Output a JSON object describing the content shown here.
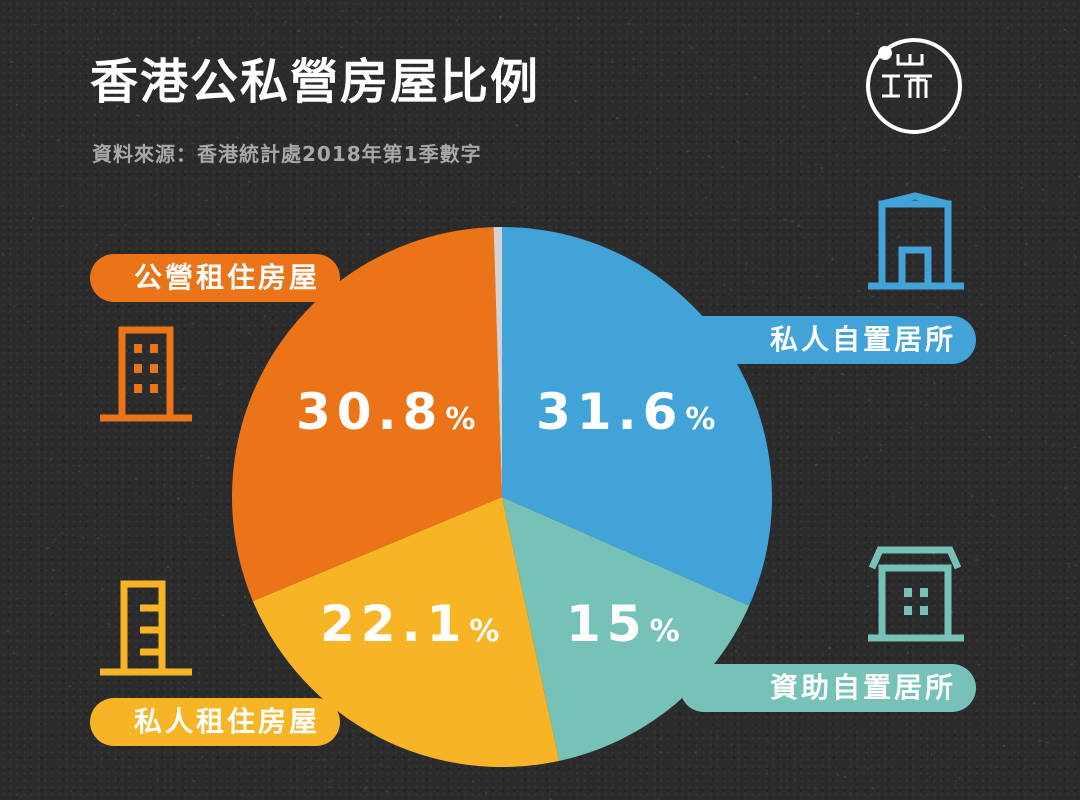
{
  "title": "香港公私營房屋比例",
  "source": "資料來源：香港統計處2018年第1季數字",
  "logo": {
    "icon": "initium-logo",
    "text": "Ⅰ　甲　"
  },
  "chart_data": {
    "type": "pie",
    "title": "香港公私營房屋比例",
    "start_angle": 0,
    "direction": "clockwise",
    "slices": [
      {
        "label": "私人自置居所",
        "value": 31.6,
        "display": "31.6",
        "unit": "%",
        "color": "#41a3d8",
        "icon": "house-outline-icon"
      },
      {
        "label": "資助自置居所",
        "value": 15,
        "display": "15",
        "unit": "%",
        "color": "#77c2b8",
        "icon": "apartment-building-icon"
      },
      {
        "label": "私人租住房屋",
        "value": 22.1,
        "display": "22.1",
        "unit": "%",
        "color": "#f7b526",
        "icon": "narrow-building-icon"
      },
      {
        "label": "公營租住房屋",
        "value": 30.8,
        "display": "30.8",
        "unit": "%",
        "color": "#eb7419",
        "icon": "tall-building-icon"
      },
      {
        "label": "",
        "value": 0.5,
        "display": "",
        "unit": "",
        "color": "#d6d2d2",
        "icon": ""
      }
    ]
  }
}
